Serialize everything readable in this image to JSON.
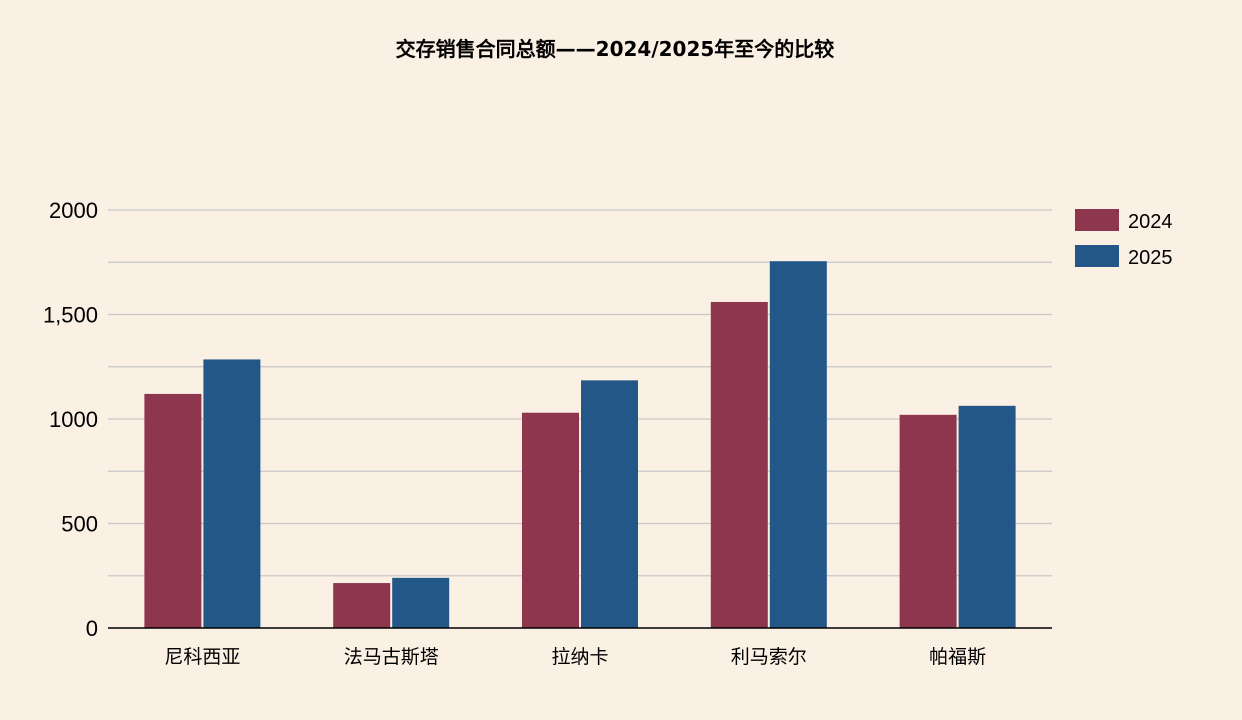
{
  "chart_data": {
    "type": "bar",
    "title": "交存销售合同总额——2024/2025年至今的比较",
    "categories": [
      "尼科西亚",
      "法马古斯塔",
      "拉纳卡",
      "利马索尔",
      "帕福斯"
    ],
    "series": [
      {
        "name": "2024",
        "color": "#8e364e",
        "values": [
          1120,
          215,
          1030,
          1560,
          1020
        ]
      },
      {
        "name": "2025",
        "color": "#235787",
        "values": [
          1285,
          240,
          1185,
          1755,
          1063
        ]
      }
    ],
    "ylim": [
      0,
      2000
    ],
    "y_ticks": [
      0,
      250,
      500,
      750,
      1000,
      1250,
      1500,
      1750,
      2000
    ],
    "y_tick_labels": [
      "0",
      "",
      "500",
      "",
      "1000",
      "",
      "1,500",
      "",
      "2000"
    ],
    "xlabel": "",
    "ylabel": "",
    "grid": true,
    "legend_position": "right-top",
    "background_color": "#fbf0e4",
    "grid_color": "#c8c8c8"
  }
}
